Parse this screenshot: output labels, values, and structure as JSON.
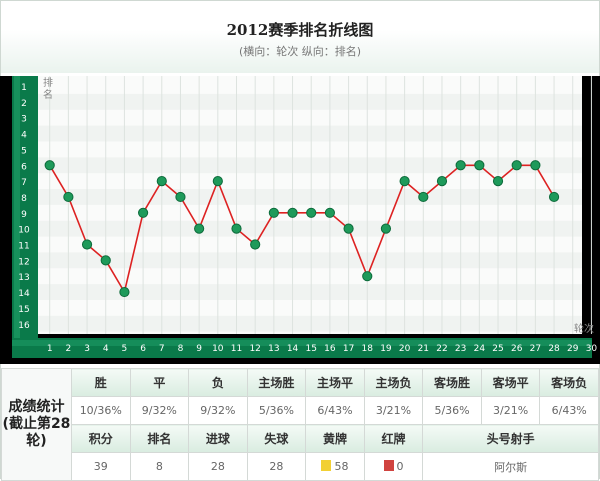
{
  "header": {
    "title": "2012赛季排名折线图",
    "subtitle": "(横向：轮次 纵向：排名)"
  },
  "chart_data": {
    "type": "line",
    "title": "2012赛季排名折线图",
    "xlabel": "轮次",
    "ylabel": "排名",
    "x": [
      1,
      2,
      3,
      4,
      5,
      6,
      7,
      8,
      9,
      10,
      11,
      12,
      13,
      14,
      15,
      16,
      17,
      18,
      19,
      20,
      21,
      22,
      23,
      24,
      25,
      26,
      27,
      28
    ],
    "x_ticks": [
      1,
      2,
      3,
      4,
      5,
      6,
      7,
      8,
      9,
      10,
      11,
      12,
      13,
      14,
      15,
      16,
      17,
      18,
      19,
      20,
      21,
      22,
      23,
      24,
      25,
      26,
      27,
      28,
      29,
      30
    ],
    "y_ticks": [
      1,
      2,
      3,
      4,
      5,
      6,
      7,
      8,
      9,
      10,
      11,
      12,
      13,
      14,
      15,
      16
    ],
    "ylim": [
      1,
      16
    ],
    "y_inverted": true,
    "grid": true,
    "series": [
      {
        "values": [
          6,
          8,
          11,
          12,
          14,
          9,
          7,
          8,
          10,
          7,
          10,
          11,
          9,
          9,
          9,
          9,
          10,
          13,
          10,
          7,
          8,
          7,
          6,
          6,
          7,
          6,
          6,
          8
        ]
      }
    ],
    "colors": {
      "line": "#dd2222",
      "marker": "#1e9a5a",
      "axis": "#0a7a4a",
      "plot_bg": "#000000"
    }
  },
  "stats": {
    "section_label": "成绩统计(截止第28轮)",
    "row1_headers": [
      "胜",
      "平",
      "负",
      "主场胜",
      "主场平",
      "主场负",
      "客场胜",
      "客场平",
      "客场负"
    ],
    "row1_values": [
      "10/36%",
      "9/32%",
      "9/32%",
      "5/36%",
      "6/43%",
      "3/21%",
      "5/36%",
      "3/21%",
      "6/43%"
    ],
    "row2_headers": [
      "积分",
      "排名",
      "进球",
      "失球",
      "黄牌",
      "红牌",
      "头号射手"
    ],
    "row2_values": [
      "39",
      "8",
      "28",
      "28",
      "58",
      "0",
      "阿尔斯"
    ],
    "yellow_color": "#f2d034",
    "red_color": "#d0433f"
  }
}
